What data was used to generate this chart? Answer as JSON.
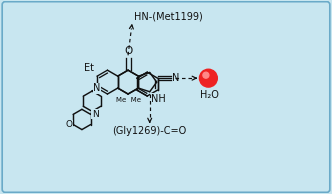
{
  "bg_color": "#c8e6f0",
  "border_color": "#6aaac8",
  "mol_color": "#111111",
  "water_color": "#ee2222",
  "water_highlight": "#ff8888",
  "label_hn_met": "HN-(Met1199)",
  "label_gly": "(Gly1269)-C=O",
  "label_h2o": "H₂O",
  "label_et": "Et",
  "font_size": 6.5,
  "lw": 1.05,
  "fig_w": 3.32,
  "fig_h": 1.94,
  "dpi": 100
}
